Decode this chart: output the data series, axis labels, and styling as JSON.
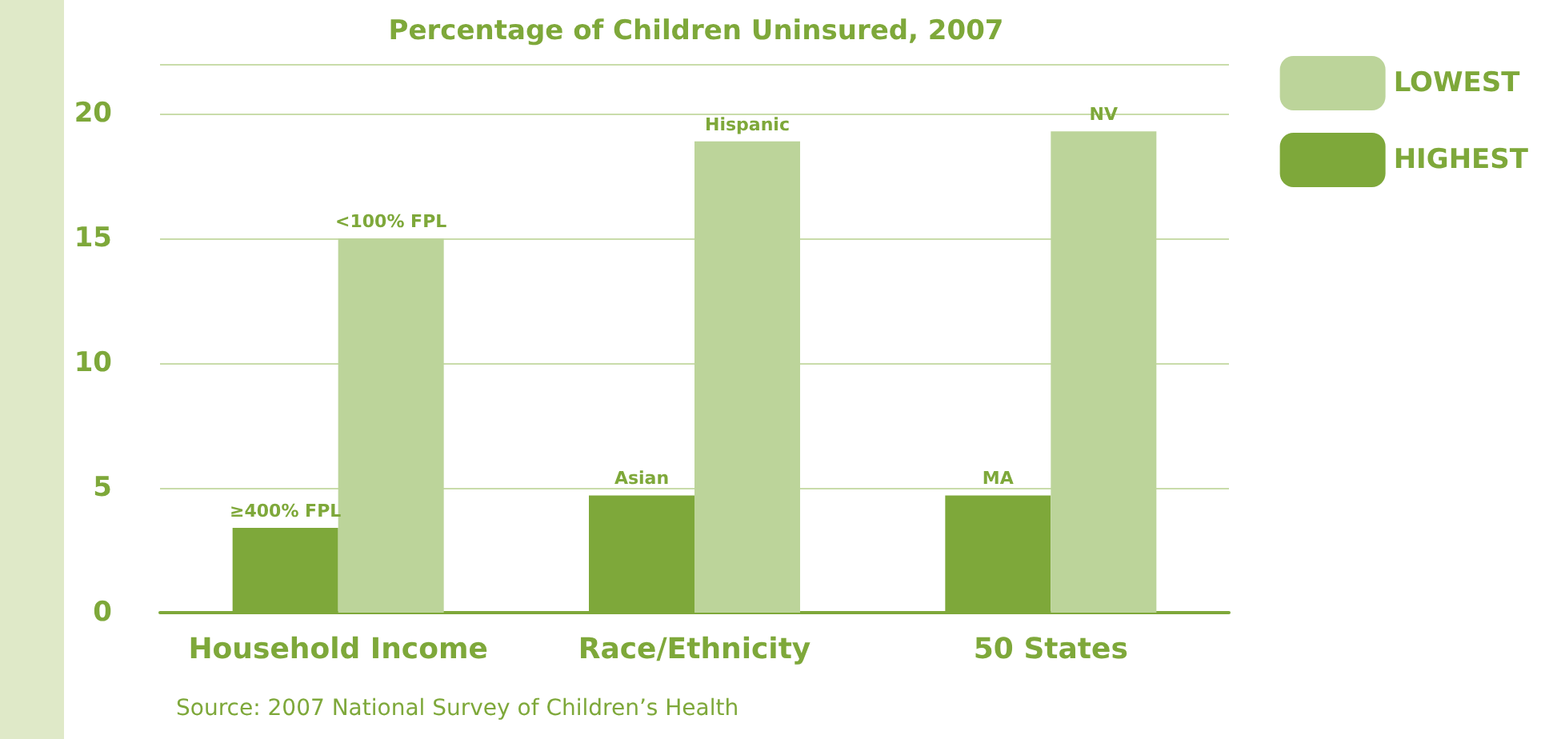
{
  "chart_data": {
    "type": "bar",
    "title": "Percentage of Children Uninsured, 2007",
    "categories": [
      "Household Income",
      "Race/Ethnicity",
      "50 States"
    ],
    "series": [
      {
        "name": "HIGHEST",
        "color": "#7ea83a",
        "values": [
          3.4,
          4.7,
          4.7
        ],
        "value_labels": [
          "≥400% FPL",
          "Asian",
          "MA"
        ]
      },
      {
        "name": "LOWEST",
        "color": "#bcd49a",
        "values": [
          15.0,
          18.9,
          19.3
        ],
        "value_labels": [
          "<100% FPL",
          "Hispanic",
          "NV"
        ]
      }
    ],
    "ylim": [
      0,
      22
    ],
    "yticks": [
      0,
      5,
      10,
      15,
      20
    ],
    "grid": "y",
    "legend": "top right",
    "annotations": [
      "Source: 2007 National Survey of Children’s Health"
    ]
  }
}
